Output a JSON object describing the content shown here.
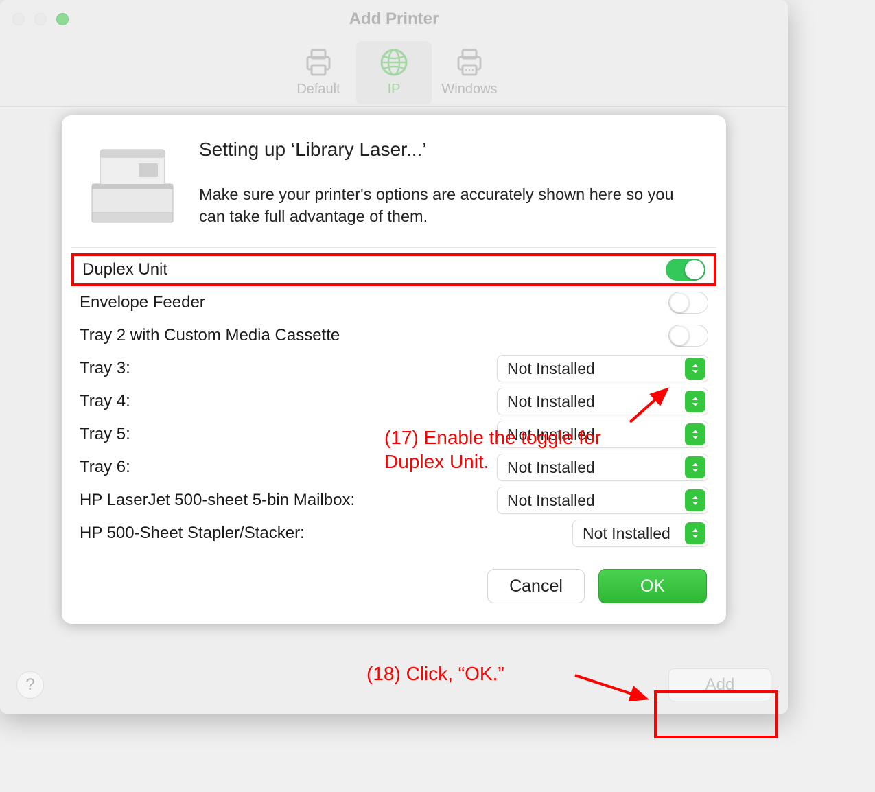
{
  "window": {
    "title": "Add Printer",
    "toolbar": {
      "default_label": "Default",
      "ip_label": "IP",
      "windows_label": "Windows",
      "selected": "ip"
    },
    "footer": {
      "help_label": "?",
      "add_label": "Add"
    }
  },
  "sheet": {
    "heading": "Setting up ‘Library Laser...’",
    "subtext": "Make sure your printer's options are accurately shown here so you can take full advantage of them.",
    "cancel_label": "Cancel",
    "ok_label": "OK"
  },
  "options": {
    "toggles": [
      {
        "label": "Duplex Unit",
        "on": true,
        "highlight": true
      },
      {
        "label": "Envelope Feeder",
        "on": false
      },
      {
        "label": "Tray 2 with Custom Media Cassette",
        "on": false
      }
    ],
    "dropdowns": [
      {
        "label": "Tray 3:",
        "value": "Not Installed",
        "narrow": false
      },
      {
        "label": "Tray 4:",
        "value": "Not Installed",
        "narrow": false
      },
      {
        "label": "Tray 5:",
        "value": "Not Installed",
        "narrow": false
      },
      {
        "label": "Tray 6:",
        "value": "Not Installed",
        "narrow": false
      },
      {
        "label": "HP LaserJet 500-sheet 5-bin Mailbox:",
        "value": "Not Installed",
        "narrow": false
      },
      {
        "label": "HP 500-Sheet Stapler/Stacker:",
        "value": "Not Installed",
        "narrow": true
      }
    ]
  },
  "annotations": {
    "a17": "(17) Enable the toggle for Duplex Unit.",
    "a18": "(18) Click, “OK.”"
  },
  "colors": {
    "accent_green": "#34c759",
    "annotation_red": "#ff0000",
    "window_bg": "#ececec",
    "sheet_bg": "#ffffff"
  }
}
